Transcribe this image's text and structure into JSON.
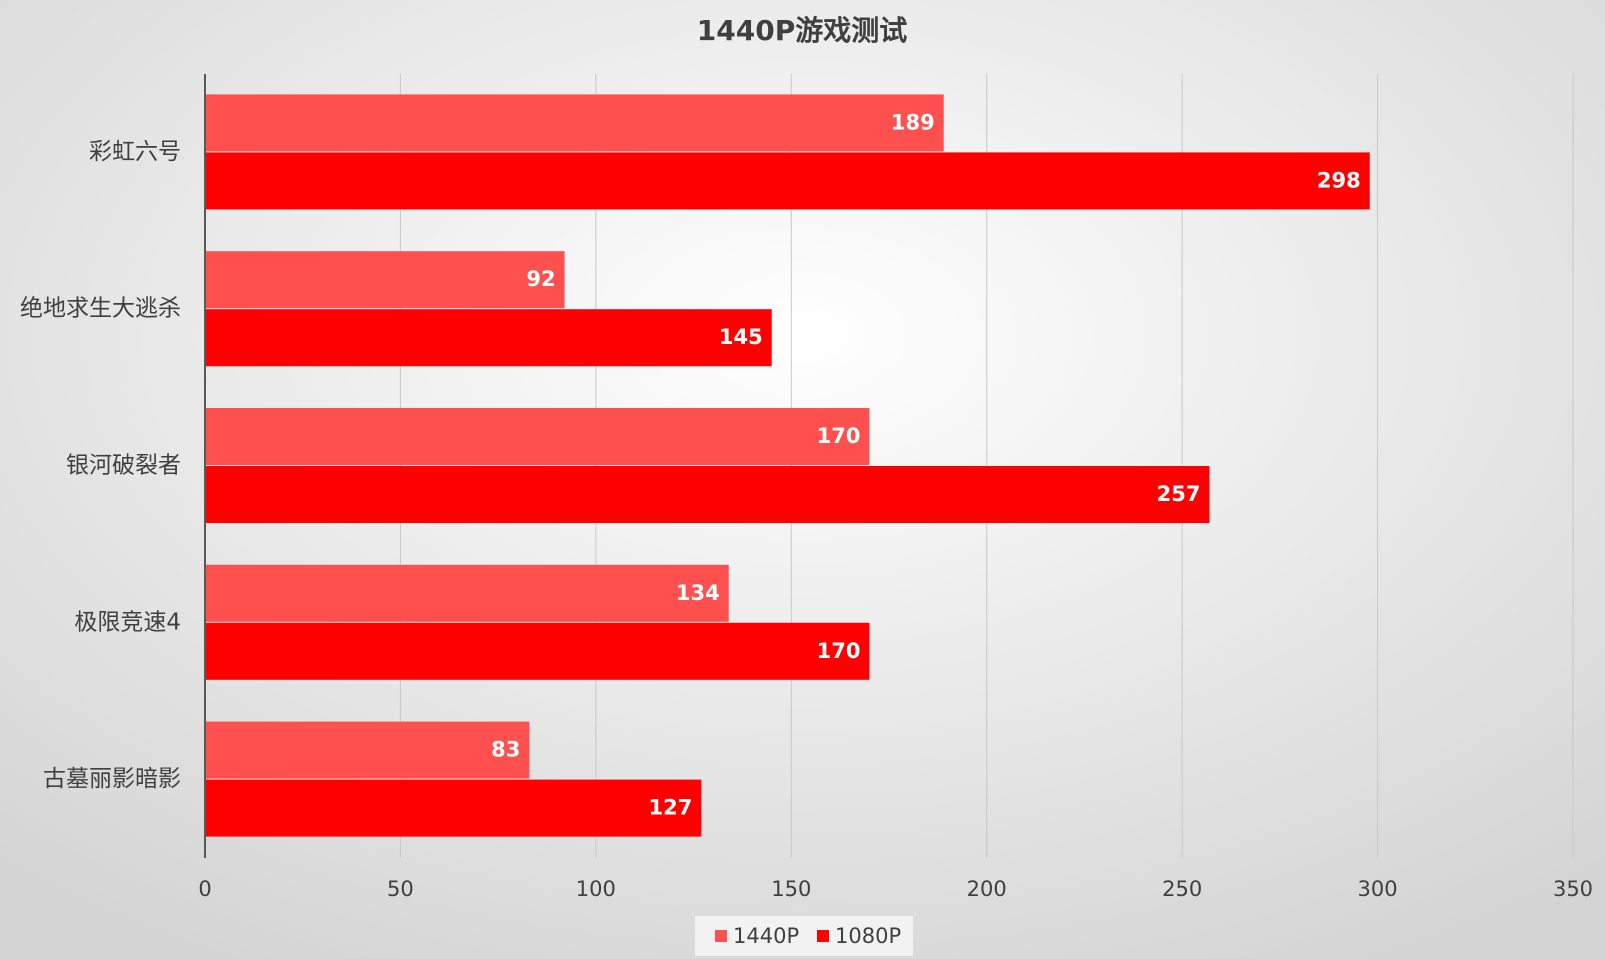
{
  "chart_data": {
    "type": "bar",
    "orientation": "horizontal",
    "title": "1440P游戏测试",
    "categories": [
      "彩虹六号",
      "绝地求生大逃杀",
      "银河破裂者",
      "极限竞速4",
      "古墓丽影暗影"
    ],
    "series": [
      {
        "name": "1440P",
        "color": "#ff5050",
        "values": [
          189,
          92,
          170,
          134,
          83
        ]
      },
      {
        "name": "1080P",
        "color": "#ff0000",
        "values": [
          298,
          145,
          257,
          170,
          127
        ]
      }
    ],
    "xlim": [
      0,
      350
    ],
    "xticks": [
      0,
      50,
      100,
      150,
      200,
      250,
      300,
      350
    ],
    "grid": true,
    "legend": "bottom"
  }
}
